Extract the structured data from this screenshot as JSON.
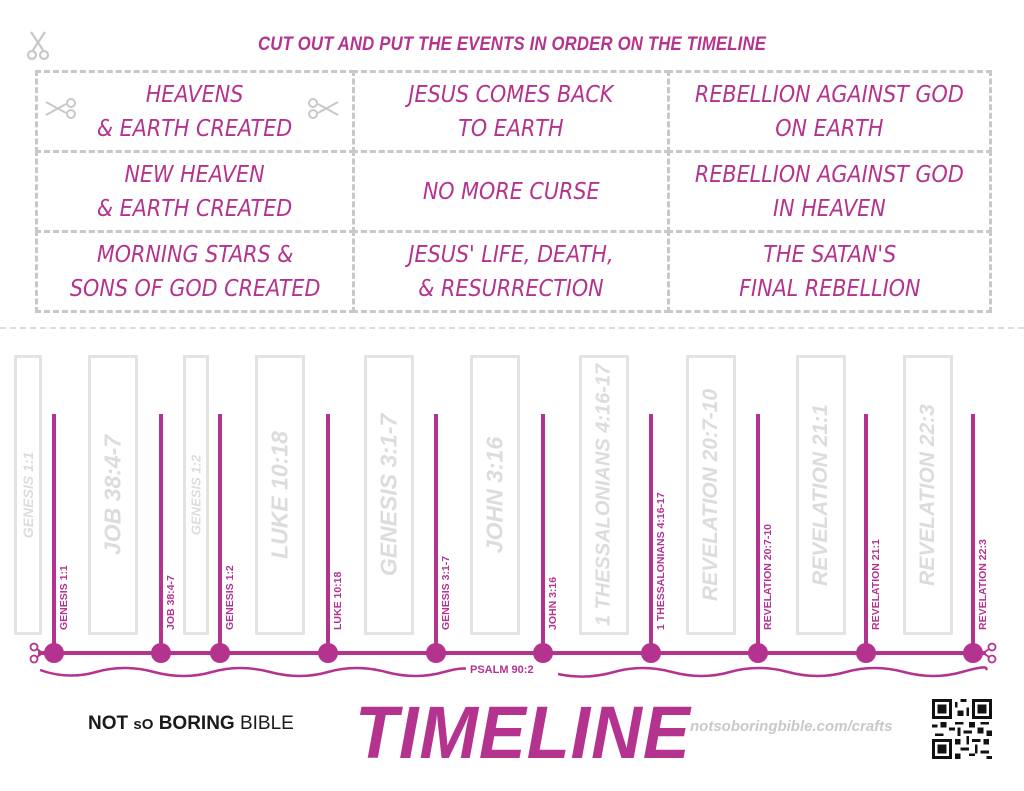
{
  "instruction": "CUT OUT AND PUT THE EVENTS IN ORDER ON THE TIMELINE",
  "cards": [
    "HEAVENS\n& EARTH CREATED",
    "JESUS COMES BACK\nTO EARTH",
    "REBELLION AGAINST GOD\nON EARTH",
    "NEW HEAVEN\n& EARTH CREATED",
    "NO MORE CURSE",
    "REBELLION AGAINST GOD\nIN HEAVEN",
    "MORNING STARS &\nSONS OF GOD CREATED",
    "JESUS' LIFE, DEATH,\n& RESURRECTION",
    "THE SATAN'S\nFINAL REBELLION"
  ],
  "ghost_slots": [
    "GENESIS 1:1",
    "JOB 38:4-7",
    "GENESIS 1:2",
    "LUKE 10:18",
    "GENESIS 3:1-7",
    "JOHN 3:16",
    "1 THESSALONIANS 4:16-17",
    "REVELATION 20:7-10",
    "REVELATION 21:1",
    "REVELATION 22:3"
  ],
  "timeline_refs": [
    "GENESIS 1:1",
    "JOB 38:4-7",
    "GENESIS 1:2",
    "LUKE 10:18",
    "GENESIS 3:1-7",
    "JOHN 3:16",
    "1 THESSALONIANS 4:16-17",
    "REVELATION 20:7-10",
    "REVELATION 21:1",
    "REVELATION 22:3"
  ],
  "psalm_ref": "PSALM 90:2",
  "brand": {
    "not": "NOT",
    "so": "sO",
    "boring": "BORING",
    "bible": "BIBLE"
  },
  "title": "TIMELINE",
  "url": "notsoboringbible.com/crafts",
  "colors": {
    "accent": "#b4338f",
    "ghost": "#dcdcdc",
    "dash": "#c8c8c8"
  },
  "icons": [
    "scissors-icon",
    "qr-code-icon"
  ]
}
